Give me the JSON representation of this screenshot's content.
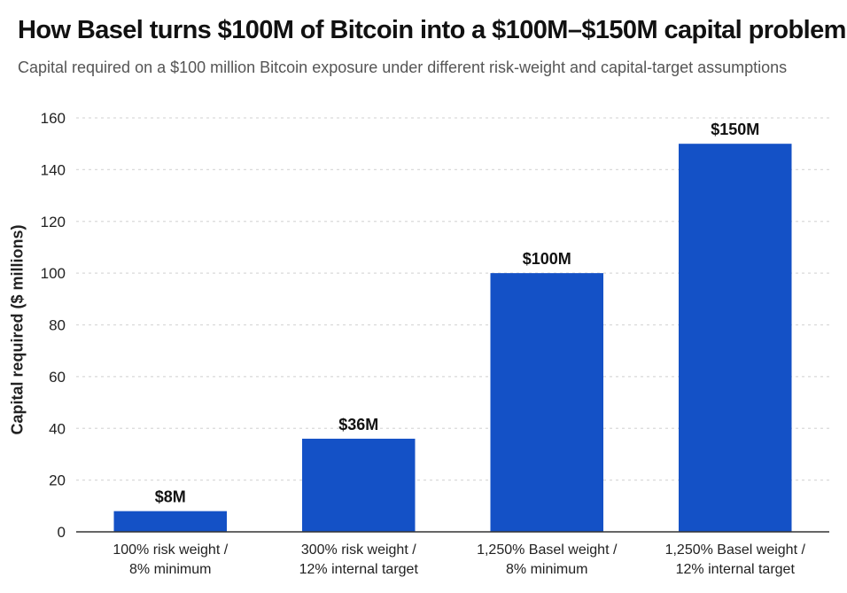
{
  "chart_data": {
    "type": "bar",
    "title": "How Basel turns $100M of Bitcoin into a $100M–$150M capital problem",
    "subtitle": "Capital required on a $100 million Bitcoin exposure under different risk-weight and capital-target assumptions",
    "xlabel": "",
    "ylabel": "Capital required ($ millions)",
    "ylim": [
      0,
      160
    ],
    "yticks": [
      0,
      20,
      40,
      60,
      80,
      100,
      120,
      140,
      160
    ],
    "grid": true,
    "categories": [
      [
        "100% risk weight /",
        "8% minimum"
      ],
      [
        "300% risk weight /",
        "12% internal target"
      ],
      [
        "1,250% Basel weight /",
        "8% minimum"
      ],
      [
        "1,250% Basel weight /",
        "12% internal target"
      ]
    ],
    "values": [
      8,
      36,
      100,
      150
    ],
    "data_labels": [
      "$8M",
      "$36M",
      "$100M",
      "$150M"
    ],
    "colors": {
      "bar": "#1451c6",
      "grid": "#d9d9d9",
      "axis": "#333333"
    }
  }
}
